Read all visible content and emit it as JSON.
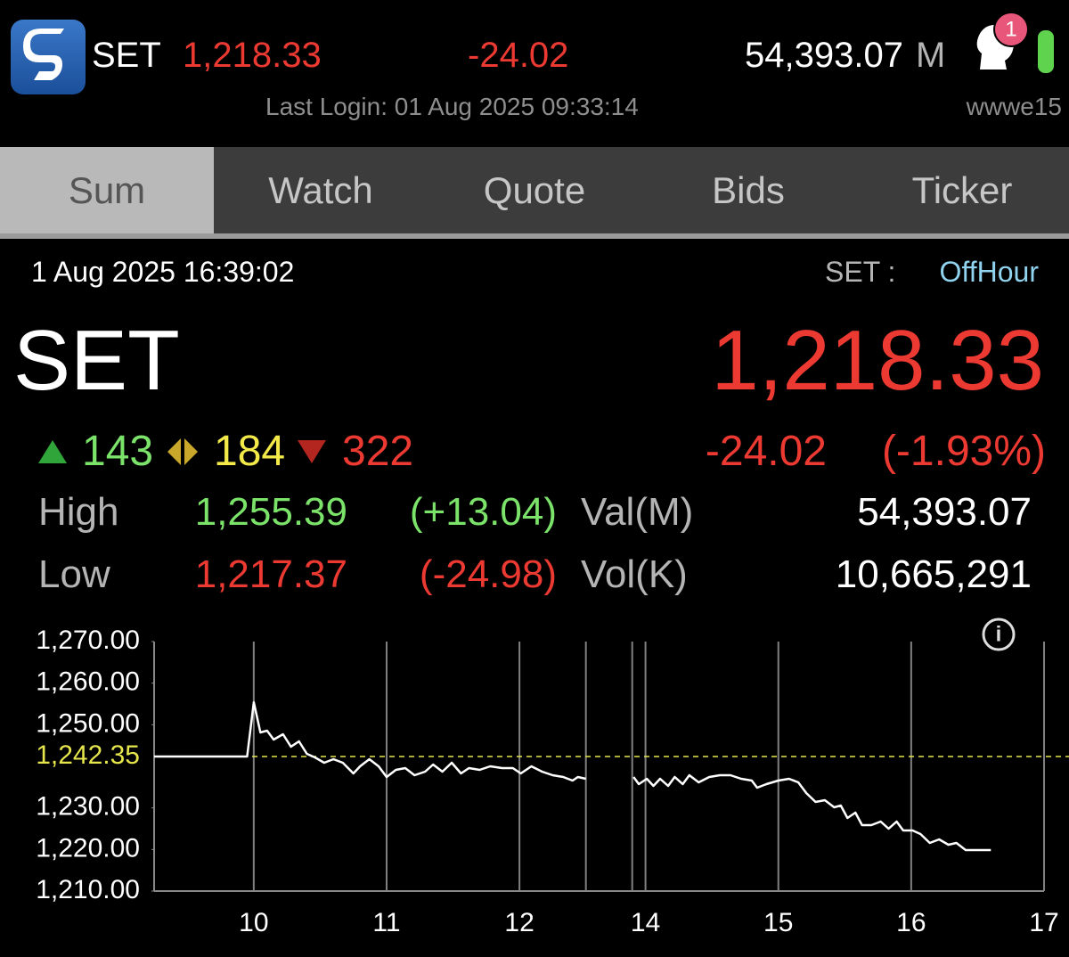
{
  "header": {
    "symbol": "SET",
    "index": "1,218.33",
    "change": "-24.02",
    "value": "54,393.07",
    "value_unit": "M",
    "last_login": "Last Login: 01 Aug 2025 09:33:14",
    "user": "wwwe15",
    "notification_count": "1"
  },
  "tabs": [
    "Sum",
    "Watch",
    "Quote",
    "Bids",
    "Ticker"
  ],
  "summary": {
    "datetime": "1 Aug 2025 16:39:02",
    "market": "SET :",
    "status": "OffHour",
    "symbol": "SET",
    "last": "1,218.33",
    "advances": "143",
    "unchanged": "184",
    "declines": "322",
    "change": "-24.02",
    "percent_change": "(-1.93%)",
    "stats": [
      {
        "label": "High",
        "value": "1,255.39",
        "change": "(+13.04)",
        "stat_label": "Val(M)",
        "stat_value": "54,393.07"
      },
      {
        "label": "Low",
        "value": "1,217.37",
        "change": "(-24.98)",
        "stat_label": "Vol(K)",
        "stat_value": "10,665,291"
      }
    ]
  },
  "chart_data": {
    "type": "line",
    "x": [
      9.25,
      9.95,
      10.0,
      10.05,
      10.1,
      10.15,
      10.22,
      10.28,
      10.34,
      10.4,
      10.46,
      10.53,
      10.6,
      10.67,
      10.75,
      10.8,
      10.87,
      10.94,
      11.0,
      11.07,
      11.14,
      11.21,
      11.29,
      11.35,
      11.42,
      11.49,
      11.56,
      11.62,
      11.7,
      11.78,
      11.87,
      11.95,
      12.01,
      12.09,
      12.17,
      12.25,
      12.33,
      12.4,
      12.44,
      12.5,
      13.0,
      13.91,
      13.95,
      14.01,
      14.06,
      14.11,
      14.17,
      14.22,
      14.28,
      14.33,
      14.4,
      14.48,
      14.56,
      14.64,
      14.72,
      14.8,
      14.84,
      14.91,
      15.0,
      15.08,
      15.15,
      15.21,
      15.28,
      15.35,
      15.42,
      15.47,
      15.52,
      15.58,
      15.63,
      15.7,
      15.77,
      15.83,
      15.89,
      15.94,
      16.01,
      16.07,
      16.14,
      16.21,
      16.28,
      16.34,
      16.41,
      16.49,
      16.6
    ],
    "series": [
      {
        "color": "#ffffff",
        "values": [
          1242.35,
          1242.35,
          1255.39,
          1248.14,
          1248.57,
          1246.43,
          1247.71,
          1244.71,
          1246.0,
          1243.0,
          1242.14,
          1240.86,
          1241.71,
          1240.86,
          1238.29,
          1240.0,
          1241.71,
          1240.0,
          1237.43,
          1239.14,
          1239.57,
          1237.86,
          1238.71,
          1240.43,
          1238.71,
          1240.86,
          1238.29,
          1239.57,
          1239.14,
          1240.0,
          1239.57,
          1239.57,
          1238.29,
          1240.0,
          1238.71,
          1237.86,
          1237.43,
          1236.57,
          1237.43,
          1237.0,
          null,
          1237.43,
          1235.71,
          1237.0,
          1235.29,
          1237.0,
          1235.29,
          1237.43,
          1235.71,
          1237.86,
          1236.14,
          1237.43,
          1237.86,
          1237.86,
          1237.0,
          1236.57,
          1234.86,
          1235.71,
          1236.57,
          1237.0,
          1236.14,
          1233.57,
          1231.43,
          1231.86,
          1230.14,
          1230.57,
          1227.57,
          1228.86,
          1225.86,
          1225.86,
          1226.71,
          1225.0,
          1226.71,
          1224.57,
          1224.57,
          1223.71,
          1221.57,
          1222.43,
          1221.14,
          1221.57,
          1219.86,
          1219.86,
          1219.86
        ]
      }
    ],
    "xlim": [
      9.25,
      17
    ],
    "xticks": [
      10,
      11,
      12,
      14,
      15,
      16,
      17
    ],
    "x_break": [
      12.5,
      13.9
    ],
    "ylim": [
      1210,
      1270
    ],
    "yticks": [
      {
        "value": 1210,
        "label": "1,210.00"
      },
      {
        "value": 1220,
        "label": "1,220.00"
      },
      {
        "value": 1230,
        "label": "1,230.00"
      },
      {
        "value": 1250,
        "label": "1,250.00"
      },
      {
        "value": 1260,
        "label": "1,260.00"
      },
      {
        "value": 1270,
        "label": "1,270.00"
      }
    ],
    "reference_line": {
      "value": 1242.35,
      "label": "1,242.35",
      "color": "#e6e64c"
    }
  }
}
